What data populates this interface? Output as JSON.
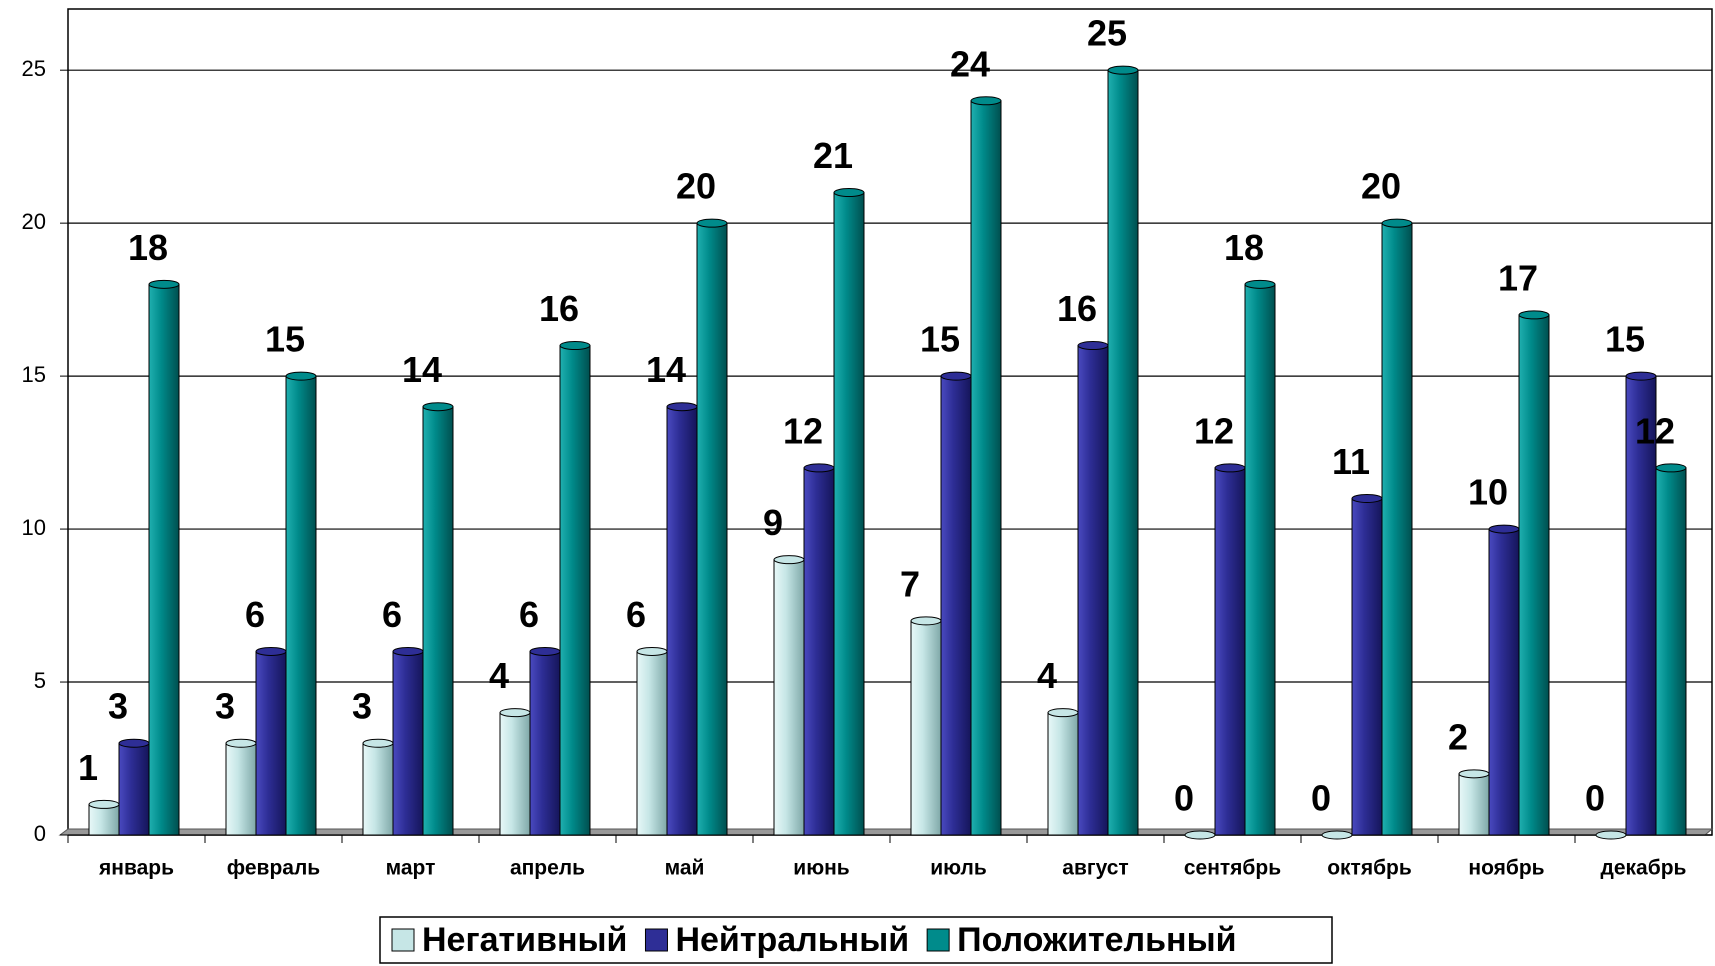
{
  "chart_data": {
    "type": "bar",
    "categories": [
      "январь",
      "февраль",
      "март",
      "апрель",
      "май",
      "июнь",
      "июль",
      "август",
      "сентябрь",
      "октябрь",
      "ноябрь",
      "декабрь"
    ],
    "series": [
      {
        "name": "Негативный",
        "color": "#c6e6e6",
        "values": [
          1,
          3,
          3,
          4,
          6,
          9,
          7,
          4,
          0,
          0,
          2,
          0
        ]
      },
      {
        "name": "Нейтральный",
        "color": "#2e2e96",
        "values": [
          3,
          6,
          6,
          6,
          14,
          12,
          15,
          16,
          12,
          11,
          10,
          15
        ]
      },
      {
        "name": "Положительный",
        "color": "#008b8b",
        "values": [
          18,
          15,
          14,
          16,
          20,
          21,
          24,
          25,
          18,
          20,
          17,
          12
        ]
      }
    ],
    "ylim": [
      0,
      27
    ],
    "yticks": [
      0,
      5,
      10,
      15,
      20,
      25
    ],
    "grid": true,
    "legend": "bottom"
  }
}
